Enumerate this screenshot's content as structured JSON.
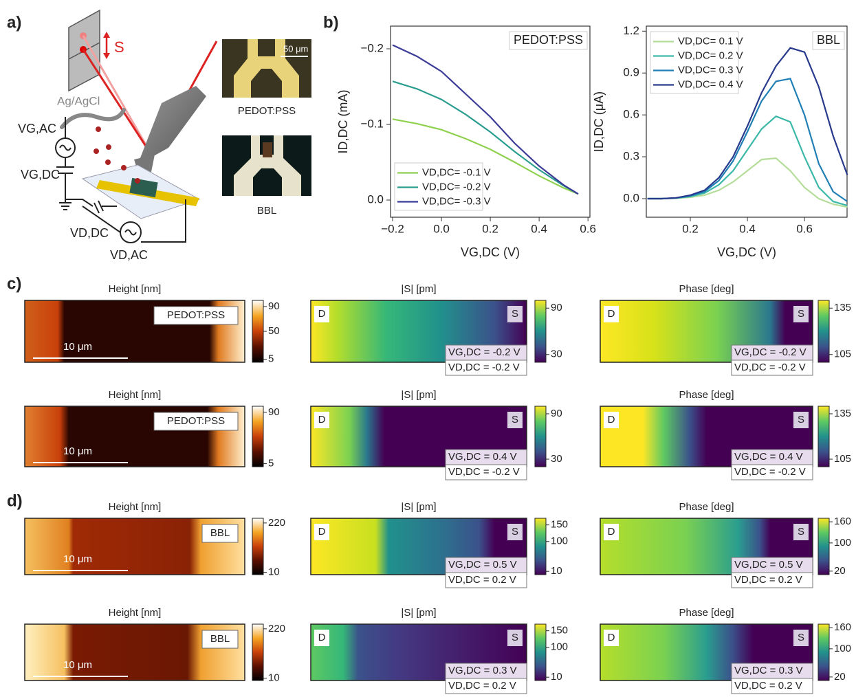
{
  "panel_labels": {
    "a": "a)",
    "b": "b)",
    "c": "c)",
    "d": "d)"
  },
  "panel_a": {
    "s_label": "S",
    "electrode": "Ag/AgCl",
    "vg_ac": "VG,AC",
    "vg_dc": "VG,DC",
    "vd_dc": "VD,DC",
    "vd_ac": "VD,AC",
    "scale": "50 μm",
    "devices": [
      "PEDOT:PSS",
      "BBL"
    ]
  },
  "chart_data": [
    {
      "type": "line",
      "annotation": "PEDOT:PSS",
      "xlabel": "VG,DC (V)",
      "ylabel": "ID,DC (mA)",
      "x": [
        -0.2,
        -0.1,
        0,
        0.1,
        0.2,
        0.3,
        0.4,
        0.5,
        0.56
      ],
      "series": [
        {
          "name": "VD,DC= -0.1 V",
          "color": "#8fd14f",
          "values": [
            -0.107,
            -0.101,
            -0.093,
            -0.081,
            -0.067,
            -0.05,
            -0.032,
            -0.016,
            -0.008
          ]
        },
        {
          "name": "VD,DC= -0.2 V",
          "color": "#2a9d8f",
          "values": [
            -0.157,
            -0.147,
            -0.133,
            -0.113,
            -0.09,
            -0.064,
            -0.04,
            -0.019,
            -0.008
          ]
        },
        {
          "name": "VD,DC= -0.3 V",
          "color": "#3b3b98",
          "values": [
            -0.205,
            -0.19,
            -0.17,
            -0.14,
            -0.11,
            -0.075,
            -0.045,
            -0.02,
            -0.008
          ]
        }
      ],
      "xlim": [
        -0.2085,
        0.608
      ],
      "ylim": [
        0.0227,
        -0.23
      ],
      "xticks": [
        {
          "value": -0.2,
          "label": "−0.2"
        },
        {
          "value": 0,
          "label": "0.0"
        },
        0.2,
        0.4,
        0.6
      ],
      "yticks": [
        {
          "value": -0.2,
          "label": "−0.2"
        },
        {
          "value": -0.1,
          "label": "−0.1"
        },
        {
          "value": 0,
          "label": "0.0"
        }
      ],
      "legend": "lower left"
    },
    {
      "type": "line",
      "annotation": "BBL",
      "xlabel": "VG,DC (V)",
      "ylabel": "ID,DC (μA)",
      "x": [
        0.05,
        0.1,
        0.15,
        0.2,
        0.25,
        0.3,
        0.35,
        0.4,
        0.45,
        0.5,
        0.55,
        0.6,
        0.65,
        0.7,
        0.75
      ],
      "series": [
        {
          "name": "VD,DC= 0.1 V",
          "color": "#b5dd9a",
          "values": [
            0,
            0,
            0.003,
            0.01,
            0.025,
            0.06,
            0.12,
            0.2,
            0.28,
            0.29,
            0.2,
            0.08,
            0,
            -0.04,
            -0.06
          ]
        },
        {
          "name": "VD,DC= 0.2 V",
          "color": "#3cb8a8",
          "values": [
            0,
            0,
            0.004,
            0.015,
            0.04,
            0.1,
            0.2,
            0.35,
            0.5,
            0.59,
            0.55,
            0.3,
            0.08,
            -0.02,
            -0.05
          ]
        },
        {
          "name": "VD,DC= 0.3 V",
          "color": "#1f7fb4",
          "values": [
            0,
            0,
            0.005,
            0.02,
            0.05,
            0.13,
            0.27,
            0.48,
            0.7,
            0.84,
            0.86,
            0.6,
            0.25,
            0.05,
            -0.02
          ]
        },
        {
          "name": "VD,DC= 0.4 V",
          "color": "#283a8c",
          "values": [
            0,
            0,
            0.006,
            0.025,
            0.06,
            0.15,
            0.3,
            0.52,
            0.76,
            0.95,
            1.08,
            1.05,
            0.8,
            0.45,
            0.17
          ]
        }
      ],
      "xlim": [
        0.0458,
        0.749
      ],
      "ylim": [
        -0.133,
        1.236
      ],
      "xticks": [
        0.2,
        0.4,
        0.6
      ],
      "yticks": [
        {
          "value": 0,
          "label": "0.0"
        },
        0.3,
        0.6,
        0.9,
        1.2
      ],
      "legend": "upper left"
    }
  ],
  "electrodes": {
    "drain": "D",
    "source": "S"
  },
  "maps": [
    {
      "height": {
        "title": "Height [nm]",
        "material": "PEDOT:PSS",
        "scale_bar": "10 μm",
        "clim": [
          0,
          100
        ],
        "cticks": [
          5,
          50,
          90
        ]
      },
      "amplitude": {
        "title": "|S| [pm]",
        "clim": [
          20,
          100
        ],
        "cticks": [
          30,
          90
        ],
        "bias": [
          "VG,DC = -0.2 V",
          "VD,DC = -0.2 V"
        ]
      },
      "phase": {
        "title": "Phase [deg]",
        "clim": [
          100,
          140
        ],
        "cticks": [
          105,
          135
        ],
        "bias": [
          "VG,DC = -0.2 V",
          "VD,DC = -0.2 V"
        ]
      }
    },
    {
      "height": {
        "title": "Height [nm]",
        "material": "PEDOT:PSS",
        "scale_bar": "10 μm",
        "clim": [
          0,
          100
        ],
        "cticks": [
          5,
          90
        ]
      },
      "amplitude": {
        "title": "|S| [pm]",
        "clim": [
          20,
          100
        ],
        "cticks": [
          30,
          90
        ],
        "bias": [
          "VG,DC = 0.4 V",
          "VD,DC = -0.2 V"
        ]
      },
      "phase": {
        "title": "Phase [deg]",
        "clim": [
          100,
          140
        ],
        "cticks": [
          105,
          135
        ],
        "bias": [
          "VG,DC = 0.4 V",
          "VD,DC = -0.2 V"
        ]
      }
    },
    {
      "height": {
        "title": "Height [nm]",
        "material": "BBL",
        "scale_bar": "10 μm",
        "clim": [
          0,
          240
        ],
        "cticks": [
          10,
          220
        ]
      },
      "amplitude": {
        "title": "|S| [pm]",
        "clim": [
          0,
          170
        ],
        "cticks": [
          10,
          100,
          150
        ],
        "bias": [
          "VG,DC = 0.5 V",
          "VD,DC = 0.2 V"
        ]
      },
      "phase": {
        "title": "Phase [deg]",
        "clim": [
          10,
          170
        ],
        "cticks": [
          20,
          100,
          160
        ],
        "bias": [
          "VG,DC = 0.5 V",
          "VD,DC = 0.2 V"
        ]
      }
    },
    {
      "height": {
        "title": "Height [nm]",
        "material": "BBL",
        "scale_bar": "10 μm",
        "clim": [
          0,
          240
        ],
        "cticks": [
          10,
          220
        ]
      },
      "amplitude": {
        "title": "|S| [pm]",
        "clim": [
          0,
          170
        ],
        "cticks": [
          10,
          100,
          150
        ],
        "bias": [
          "VG,DC = 0.3 V",
          "VD,DC = 0.2 V"
        ]
      },
      "phase": {
        "title": "Phase [deg]",
        "clim": [
          10,
          170
        ],
        "cticks": [
          20,
          100,
          160
        ],
        "bias": [
          "VG,DC = 0.3 V",
          "VD,DC = 0.2 V"
        ]
      }
    }
  ]
}
